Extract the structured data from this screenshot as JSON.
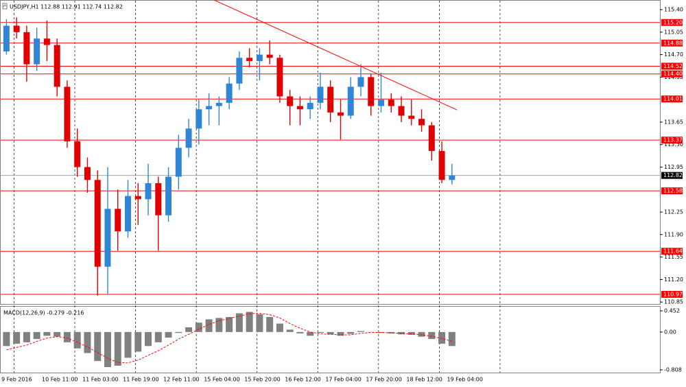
{
  "chart_data": [
    {
      "type": "candlestick",
      "title": "USDJPY,H1  112.88 112.91 112.74 112.82",
      "categories": [
        "9 Feb 2016",
        null,
        null,
        null,
        "10 Feb 11:00",
        null,
        null,
        null,
        "11 Feb 03:00",
        null,
        null,
        null,
        "11 Feb 19:00",
        null,
        null,
        null,
        "12 Feb 11:00",
        null,
        null,
        null,
        "15 Feb 04:00",
        null,
        null,
        null,
        "15 Feb 20:00",
        null,
        null,
        null,
        "16 Feb 12:00",
        null,
        null,
        null,
        "17 Feb 04:00",
        null,
        null,
        null,
        "17 Feb 20:00",
        null,
        null,
        null,
        "18 Feb 12:00",
        null,
        null,
        null,
        "19 Feb 04:00"
      ],
      "open": [
        114.75,
        115.15,
        115.05,
        114.55,
        114.95,
        114.85,
        114.2,
        113.35,
        112.95,
        112.75,
        111.4,
        112.3,
        111.95,
        112.5,
        112.45,
        112.7,
        112.2,
        112.8,
        113.25,
        113.55,
        113.85,
        113.9,
        113.95,
        114.25,
        114.65,
        114.6,
        114.7,
        114.65,
        114.05,
        113.9,
        113.85,
        113.95,
        114.2,
        113.8,
        113.75,
        114.2,
        114.35,
        113.9,
        114.0,
        113.9,
        113.75,
        113.7,
        113.6,
        113.2,
        112.75
      ],
      "high": [
        115.25,
        115.28,
        115.15,
        115.12,
        115.23,
        114.95,
        114.3,
        113.55,
        113.1,
        112.9,
        112.95,
        112.6,
        112.75,
        112.7,
        113.0,
        112.8,
        112.95,
        113.45,
        113.7,
        114.0,
        114.1,
        114.05,
        114.35,
        114.75,
        114.8,
        114.8,
        114.92,
        114.7,
        114.15,
        114.05,
        114.05,
        114.42,
        114.3,
        114.0,
        114.35,
        114.55,
        114.4,
        114.42,
        114.1,
        114.05,
        114.0,
        113.85,
        113.65,
        113.35,
        113.0
      ],
      "low": [
        114.7,
        114.95,
        114.28,
        114.45,
        114.6,
        114.05,
        113.25,
        112.8,
        112.55,
        110.95,
        110.97,
        111.65,
        111.85,
        112.05,
        112.2,
        111.65,
        112.1,
        112.6,
        113.1,
        113.3,
        113.6,
        113.6,
        113.85,
        114.15,
        114.5,
        114.3,
        114.55,
        113.95,
        113.6,
        113.6,
        113.7,
        113.85,
        113.65,
        113.38,
        113.7,
        114.05,
        113.75,
        113.8,
        113.8,
        113.65,
        113.6,
        113.5,
        113.05,
        112.7,
        112.68
      ],
      "close": [
        115.15,
        115.05,
        114.55,
        114.95,
        114.85,
        114.2,
        113.35,
        112.95,
        112.75,
        111.4,
        112.3,
        111.95,
        112.5,
        112.45,
        112.7,
        112.2,
        112.8,
        113.25,
        113.55,
        113.85,
        113.9,
        113.95,
        114.25,
        114.65,
        114.6,
        114.7,
        114.65,
        114.05,
        113.9,
        113.85,
        113.95,
        114.2,
        113.8,
        113.75,
        114.2,
        114.35,
        113.9,
        114.0,
        113.9,
        113.75,
        113.7,
        113.6,
        113.2,
        112.75,
        112.82
      ],
      "up_color": "#2f86d6",
      "down_color": "#e00000",
      "ylim": [
        110.82,
        115.55
      ],
      "yticks": [
        {
          "value": 115.4,
          "label": "115.40"
        },
        115.05,
        {
          "value": 114.7,
          "label": "114.70"
        },
        114.35,
        113.65,
        {
          "value": 113.3,
          "label": "113.30"
        },
        112.95,
        112.25,
        {
          "value": 111.9,
          "label": "111.90"
        },
        111.55,
        {
          "value": 111.2,
          "label": "111.20"
        },
        110.85
      ],
      "levels": [
        {
          "value": 115.2,
          "label": "115.20"
        },
        {
          "value": 114.88,
          "label": "114.88"
        },
        {
          "value": 114.52,
          "label": "114.52"
        },
        {
          "value": 114.4,
          "label": "114.40"
        },
        {
          "value": 114.01,
          "label": "114.01"
        },
        {
          "value": 113.37,
          "label": "113.37"
        },
        {
          "value": 112.58,
          "label": "112.58"
        },
        {
          "value": 111.64,
          "label": "111.64"
        },
        {
          "value": 110.97,
          "label": "110.97"
        }
      ],
      "level_color": "#ff0000",
      "current": {
        "value": 112.82,
        "label": "112.82"
      },
      "trendline": {
        "x": [
          21,
          45
        ],
        "y": [
          115.55,
          113.84
        ],
        "color": "#ff0000"
      }
    },
    {
      "type": "macd",
      "label": "MACD(12,26,9) -0.279 -0.216",
      "histogram": [
        -0.3,
        -0.25,
        -0.22,
        -0.15,
        -0.08,
        -0.1,
        -0.22,
        -0.35,
        -0.45,
        -0.62,
        -0.75,
        -0.72,
        -0.55,
        -0.42,
        -0.3,
        -0.22,
        -0.12,
        -0.02,
        0.1,
        0.2,
        0.27,
        0.3,
        0.32,
        0.4,
        0.43,
        0.38,
        0.32,
        0.18,
        0.05,
        -0.03,
        -0.08,
        -0.02,
        -0.05,
        -0.08,
        -0.04,
        0.02,
        0.0,
        -0.02,
        -0.03,
        -0.05,
        -0.06,
        -0.1,
        -0.15,
        -0.25,
        -0.3
      ],
      "signal": [
        -0.38,
        -0.33,
        -0.28,
        -0.2,
        -0.13,
        -0.1,
        -0.13,
        -0.22,
        -0.32,
        -0.44,
        -0.56,
        -0.65,
        -0.66,
        -0.6,
        -0.5,
        -0.4,
        -0.28,
        -0.15,
        -0.05,
        0.06,
        0.16,
        0.24,
        0.29,
        0.34,
        0.39,
        0.4,
        0.37,
        0.3,
        0.18,
        0.08,
        0.0,
        -0.04,
        -0.05,
        -0.06,
        -0.06,
        -0.03,
        -0.01,
        -0.01,
        -0.02,
        -0.03,
        -0.04,
        -0.06,
        -0.09,
        -0.14,
        -0.2
      ],
      "histogram_color": "#808080",
      "signal_color": "#ff0000",
      "ylim": [
        -0.867,
        0.54
      ],
      "yticks": [
        0.452,
        {
          "value": 0,
          "label": "0.00"
        },
        -0.808
      ]
    }
  ]
}
